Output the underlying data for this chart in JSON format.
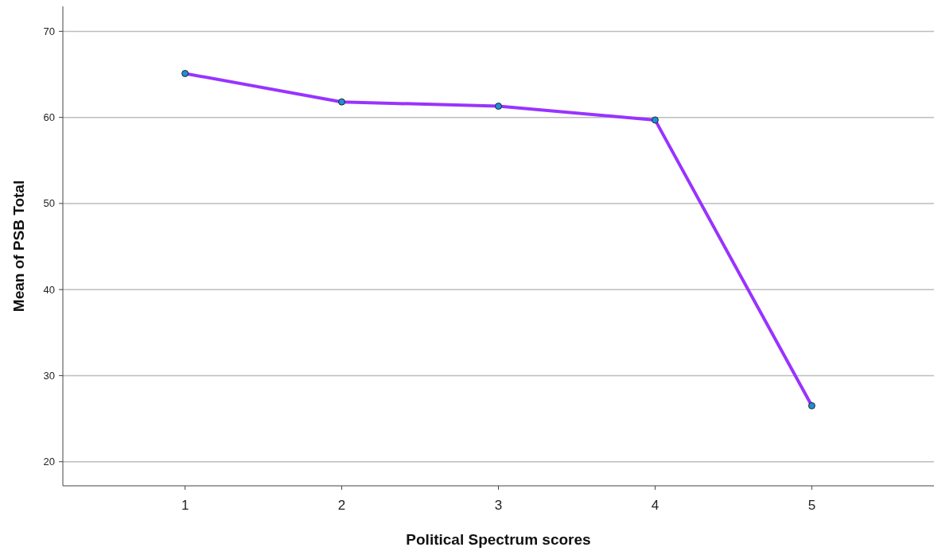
{
  "chart_data": {
    "type": "line",
    "xlabel": "Political Spectrum scores",
    "ylabel": "Mean of PSB Total",
    "categories": [
      "1",
      "2",
      "3",
      "4",
      "5"
    ],
    "series": [
      {
        "color": "#9933ff",
        "values": [
          65.1,
          61.8,
          61.3,
          59.7,
          26.5
        ],
        "marker": "none"
      },
      {
        "type": "scatter",
        "color": "#1f8fdb",
        "values": [
          65.1,
          61.8,
          61.3,
          59.7,
          26.5
        ],
        "marker": "circle"
      }
    ],
    "ylim": [
      17.2,
      72.9
    ],
    "yticks": [
      20,
      30,
      40,
      50,
      60,
      70
    ],
    "grid": "y"
  }
}
